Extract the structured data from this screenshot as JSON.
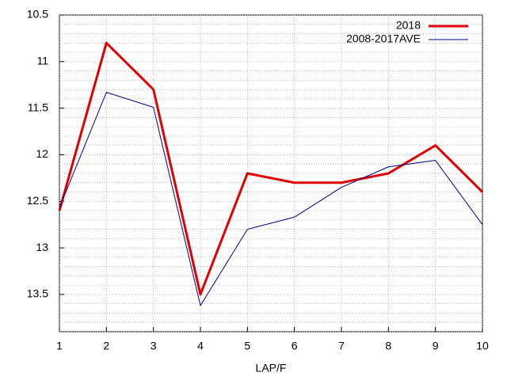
{
  "chart_data": {
    "type": "line",
    "xlabel": "LAP/F",
    "x": [
      1,
      2,
      3,
      4,
      5,
      6,
      7,
      8,
      9,
      10
    ],
    "series": [
      {
        "name": "2018",
        "color": "#e00000",
        "width": 3,
        "values": [
          12.6,
          10.8,
          11.3,
          13.5,
          12.2,
          12.3,
          12.3,
          12.2,
          11.9,
          12.4
        ]
      },
      {
        "name": "2008-2017AVE",
        "color": "#00008b",
        "width": 1,
        "values": [
          12.57,
          11.33,
          11.49,
          13.62,
          12.8,
          12.67,
          12.35,
          12.13,
          12.06,
          12.75
        ]
      }
    ],
    "xlim": [
      1,
      10
    ],
    "xticks": [
      1,
      2,
      3,
      4,
      5,
      6,
      7,
      8,
      9,
      10
    ],
    "ylim": [
      13.9,
      10.5
    ],
    "yticks": [
      10.5,
      11,
      11.5,
      12,
      12.5,
      13,
      13.5
    ],
    "grid": true,
    "legend": "top-right"
  }
}
